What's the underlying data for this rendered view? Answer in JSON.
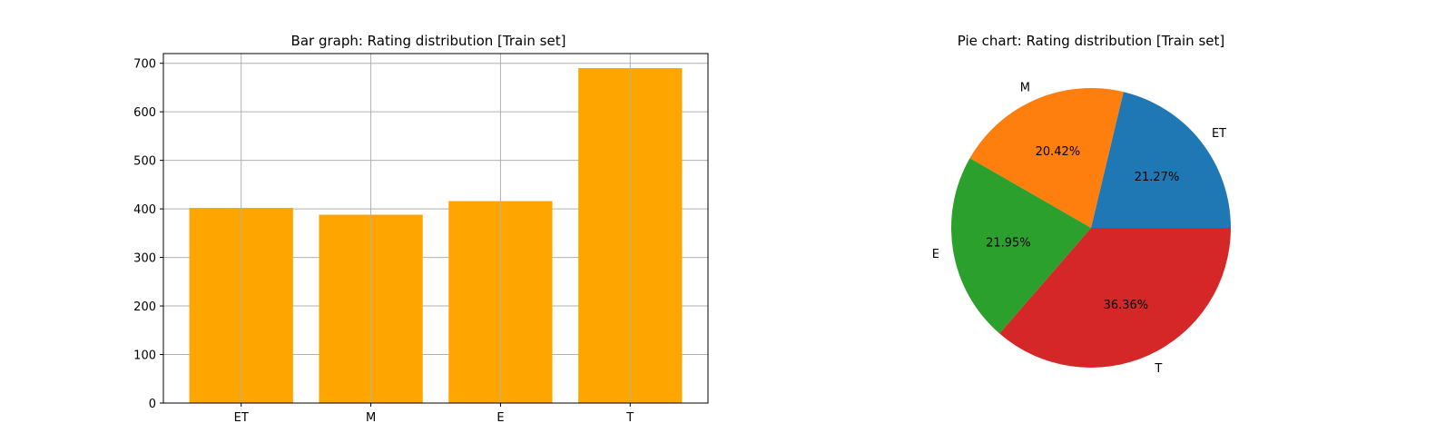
{
  "chart_data": [
    {
      "type": "bar",
      "title": "Bar graph: Rating distribution [Train set]",
      "categories": [
        "ET",
        "M",
        "E",
        "T"
      ],
      "values": [
        402,
        388,
        416,
        690
      ],
      "ylim": [
        0,
        720
      ],
      "yticks": [
        0,
        100,
        200,
        300,
        400,
        500,
        600,
        700
      ],
      "xlabel": "",
      "ylabel": "",
      "grid": true,
      "bar_color": "#ffa500"
    },
    {
      "type": "pie",
      "title": "Pie chart:  Rating distribution [Train set]",
      "labels": [
        "ET",
        "M",
        "E",
        "T"
      ],
      "percentages": [
        "21.27%",
        "20.42%",
        "21.95%",
        "36.36%"
      ],
      "values": [
        21.27,
        20.42,
        21.95,
        36.36
      ],
      "colors": [
        "#1f77b4",
        "#ff7f0e",
        "#2ca02c",
        "#d62728"
      ]
    }
  ]
}
